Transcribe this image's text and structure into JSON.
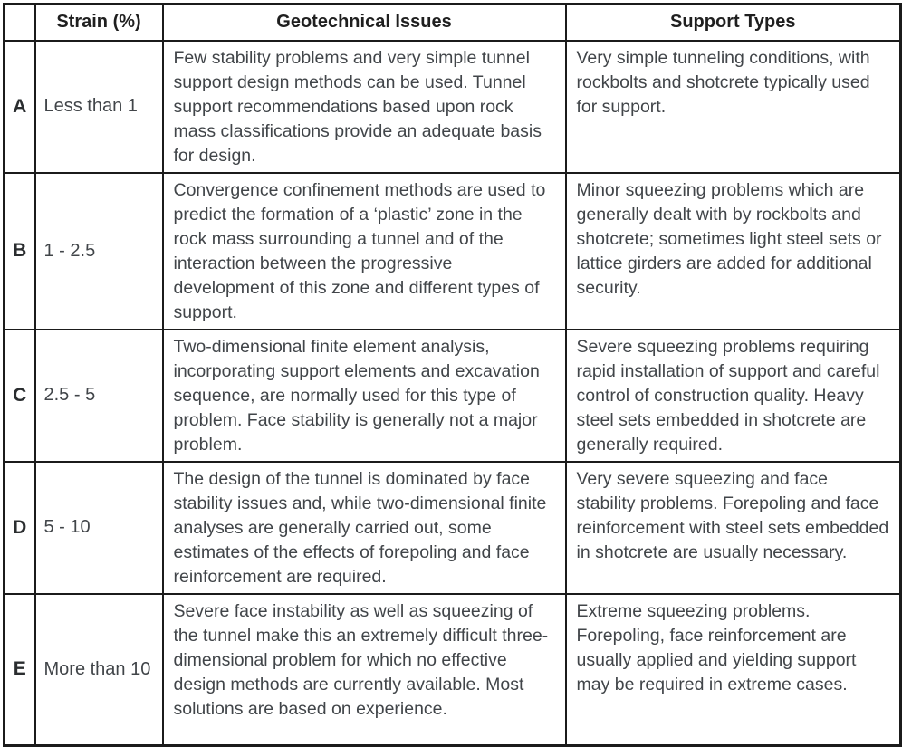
{
  "colors": {
    "border": "#1b1b1b",
    "header_text": "#1f1f1f",
    "body_text": "#414549",
    "background": "#ffffff"
  },
  "table": {
    "headers": {
      "class": "",
      "strain": "Strain (%)",
      "geo": "Geotechnical Issues",
      "support": "Support Types"
    },
    "rows": [
      {
        "cls": "A",
        "strain": "Less than 1",
        "geo": "Few stability problems and very simple tunnel support design methods can be used. Tunnel support recommendations based upon rock mass classifications provide an adequate basis for design.",
        "support": "Very simple tunneling conditions, with rockbolts and shotcrete typically used for support."
      },
      {
        "cls": "B",
        "strain": "1 - 2.5",
        "geo": "Convergence confinement methods are used to predict the formation of a ‘plastic’ zone in the rock mass surrounding a tunnel and of the interaction between the progressive development of this zone and different types of support.",
        "support": "Minor squeezing problems which are generally dealt with by rockbolts and shotcrete; sometimes light steel sets or lattice girders are added for additional security."
      },
      {
        "cls": "C",
        "strain": "2.5 - 5",
        "geo": "Two-dimensional finite element analysis, incorporating support elements and excavation sequence, are normally used for this type of problem. Face stability is generally not a major problem.",
        "support": "Severe squeezing problems requiring rapid installation of support and careful control of construction quality. Heavy steel sets embedded in shotcrete are generally required."
      },
      {
        "cls": "D",
        "strain": "5 - 10",
        "geo": "The design of the tunnel is dominated by face stability issues and, while two-dimensional finite analyses are generally carried out, some estimates of the effects of forepoling and face reinforcement are required.",
        "support": "Very severe squeezing and face stability problems. Forepoling and face reinforcement with steel sets embedded in shotcrete are usually necessary."
      },
      {
        "cls": "E",
        "strain": "More than 10",
        "geo": "Severe face instability as well as squeezing of the tunnel make this an extremely difficult three-dimensional problem for which no effective design methods are currently available. Most solutions are based on experience.",
        "support": "Extreme squeezing problems. Forepoling, face reinforcement are usually applied and yielding support may be required in extreme cases."
      }
    ]
  }
}
